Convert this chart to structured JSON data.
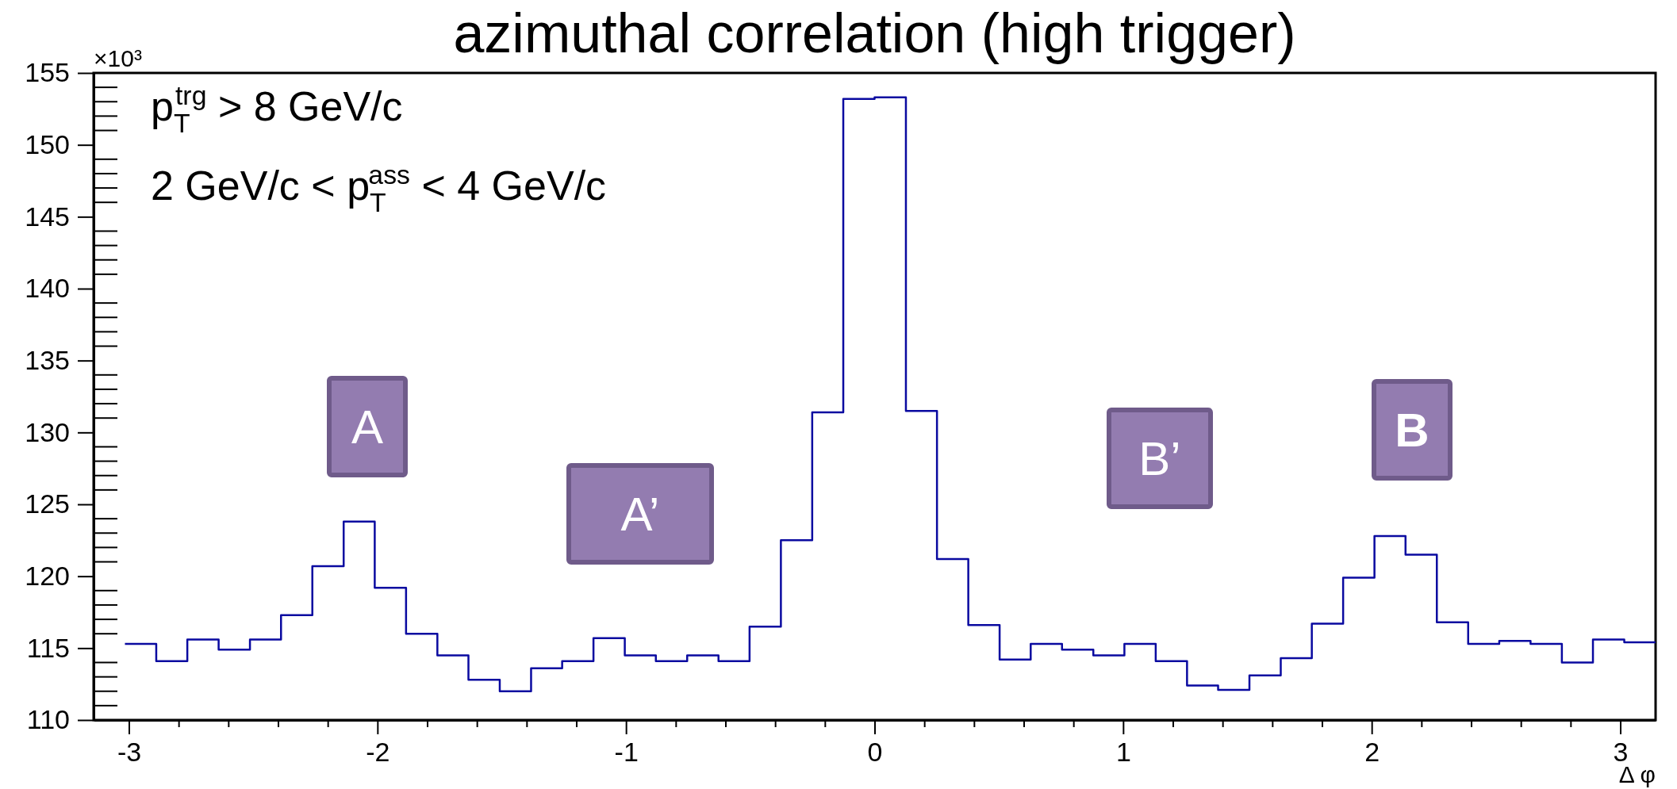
{
  "chart_data": {
    "type": "histogram",
    "title": "azimuthal correlation (high trigger)",
    "xlabel": "Δ φ",
    "color": "#0a0aa0",
    "bins": [
      -3.016,
      -2.89,
      -2.765,
      -2.639,
      -2.513,
      -2.388,
      -2.262,
      -2.136,
      -2.011,
      -1.885,
      -1.759,
      -1.634,
      -1.508,
      -1.382,
      -1.257,
      -1.131,
      -1.005,
      -0.88,
      -0.754,
      -0.628,
      -0.503,
      -0.377,
      -0.251,
      -0.126,
      0,
      0.126,
      0.251,
      0.377,
      0.503,
      0.628,
      0.754,
      0.88,
      1.005,
      1.131,
      1.257,
      1.382,
      1.508,
      1.634,
      1.759,
      1.885,
      2.011,
      2.136,
      2.262,
      2.388,
      2.513,
      2.639,
      2.765,
      2.89,
      3.016,
      3.142
    ],
    "values": [
      115.3,
      114.1,
      115.6,
      114.9,
      115.6,
      117.3,
      120.7,
      123.8,
      119.2,
      116.0,
      114.5,
      112.8,
      112.0,
      113.6,
      114.1,
      115.7,
      114.5,
      114.1,
      114.5,
      114.1,
      116.5,
      122.5,
      131.4,
      153.2,
      153.3,
      131.5,
      121.2,
      116.6,
      114.2,
      115.3,
      114.9,
      114.5,
      115.3,
      114.1,
      112.4,
      112.1,
      113.1,
      114.3,
      116.7,
      119.9,
      122.8,
      121.5,
      116.8,
      115.3,
      115.5,
      115.3,
      114.0,
      115.6,
      115.4
    ],
    "xlim": [
      -3.142,
      3.142
    ],
    "xticks": [
      -3,
      {
        "value": -2.8,
        "label": null
      },
      {
        "value": -2.6,
        "label": null
      },
      {
        "value": -2.4,
        "label": null
      },
      {
        "value": -2.2,
        "label": null
      },
      -2,
      {
        "value": -1.8,
        "label": null
      },
      {
        "value": -1.6,
        "label": null
      },
      {
        "value": -1.4,
        "label": null
      },
      {
        "value": -1.2,
        "label": null
      },
      -1,
      {
        "value": -0.8,
        "label": null
      },
      {
        "value": -0.6,
        "label": null
      },
      {
        "value": -0.4,
        "label": null
      },
      {
        "value": -0.2,
        "label": null
      },
      0,
      {
        "value": 0.2,
        "label": null
      },
      {
        "value": 0.4,
        "label": null
      },
      {
        "value": 0.6,
        "label": null
      },
      {
        "value": 0.8,
        "label": null
      },
      1,
      {
        "value": 1.2,
        "label": null
      },
      {
        "value": 1.4,
        "label": null
      },
      {
        "value": 1.6,
        "label": null
      },
      {
        "value": 1.8,
        "label": null
      },
      2,
      {
        "value": 2.2,
        "label": null
      },
      {
        "value": 2.4,
        "label": null
      },
      {
        "value": 2.6,
        "label": null
      },
      {
        "value": 2.8,
        "label": null
      },
      3
    ],
    "ylim": [
      110,
      155
    ],
    "yticks": [
      110,
      115,
      120,
      125,
      130,
      135,
      140,
      145,
      150,
      155
    ],
    "grid": false,
    "annotations": [
      "×10³",
      "p$_{T}$$^{trg}$ > 8 GeV/c",
      "2 GeV/c < p$_{T}$$^{ass}$ < 4 GeV/c",
      "A",
      "A’",
      "B’",
      "B"
    ]
  }
}
